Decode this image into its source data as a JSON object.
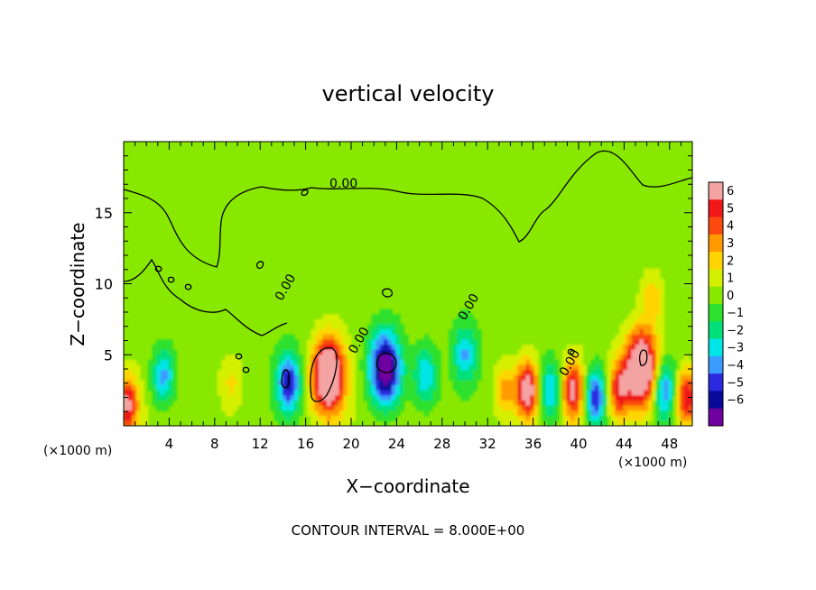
{
  "chart_data": {
    "type": "heatmap",
    "title": "vertical velocity",
    "xlabel": "X−coordinate",
    "ylabel": "Z−coordinate",
    "x_unit_left": "(×1000 m)",
    "x_unit_right": "(×1000 m)",
    "footer": "CONTOUR INTERVAL = 8.000E+00",
    "contour_label": "0.00",
    "xlim": [
      0,
      50
    ],
    "ylim": [
      0,
      20
    ],
    "x_ticks": [
      4,
      8,
      12,
      16,
      20,
      24,
      28,
      32,
      36,
      40,
      44,
      48
    ],
    "y_ticks": [
      5,
      10,
      15
    ],
    "colorbar": {
      "range": [
        -6,
        6
      ],
      "labels": [
        "6",
        "5",
        "4",
        "3",
        "2",
        "1",
        "0",
        "−1",
        "−2",
        "−3",
        "−4",
        "−5",
        "−6"
      ],
      "colors": [
        "#f4a3a3",
        "#f01818",
        "#fa4a10",
        "#ff9a00",
        "#ffd400",
        "#d4f000",
        "#88e800",
        "#2ee02e",
        "#00e07a",
        "#00e6e6",
        "#3a9cff",
        "#2a2ae0",
        "#0a0a9a",
        "#7000a0"
      ]
    },
    "background_value": 0.5,
    "features": [
      {
        "x": 3.5,
        "z": 3.5,
        "w": -3.5
      },
      {
        "x": 9.5,
        "z": 3.0,
        "w": 1.5
      },
      {
        "x": 14.5,
        "z": 3.0,
        "w": -5.0
      },
      {
        "x": 18.0,
        "z": 3.5,
        "w": 8.0
      },
      {
        "x": 23.0,
        "z": 4.0,
        "w": -7.0
      },
      {
        "x": 26.5,
        "z": 3.5,
        "w": -3.0
      },
      {
        "x": 30.0,
        "z": 5.0,
        "w": -3.0
      },
      {
        "x": 33.5,
        "z": 2.5,
        "w": 2.5
      },
      {
        "x": 35.5,
        "z": 2.5,
        "w": 6.0
      },
      {
        "x": 37.5,
        "z": 2.5,
        "w": -3.5
      },
      {
        "x": 39.5,
        "z": 2.5,
        "w": 5.0
      },
      {
        "x": 41.5,
        "z": 2.0,
        "w": -5.0
      },
      {
        "x": 43.5,
        "z": 2.5,
        "w": 4.0
      },
      {
        "x": 45.5,
        "z": 4.0,
        "w": 8.0
      },
      {
        "x": 47.5,
        "z": 2.5,
        "w": -4.0
      },
      {
        "x": 49.5,
        "z": 2.0,
        "w": 5.0
      },
      {
        "x": 0.3,
        "z": 1.5,
        "w": 5.0
      },
      {
        "x": 46.5,
        "z": 9.0,
        "w": 2.0
      }
    ]
  }
}
